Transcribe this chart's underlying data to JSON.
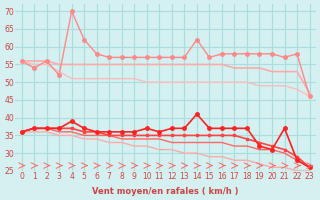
{
  "x": [
    0,
    1,
    2,
    3,
    4,
    5,
    6,
    7,
    8,
    9,
    10,
    11,
    12,
    13,
    14,
    15,
    16,
    17,
    18,
    19,
    20,
    21,
    22,
    23
  ],
  "line1": [
    56,
    54,
    56,
    52,
    70,
    62,
    58,
    57,
    57,
    57,
    57,
    57,
    57,
    57,
    62,
    57,
    58,
    58,
    58,
    58,
    58,
    57,
    58,
    46
  ],
  "line2": [
    56,
    56,
    56,
    55,
    55,
    55,
    55,
    55,
    55,
    55,
    55,
    55,
    55,
    55,
    55,
    55,
    55,
    54,
    54,
    54,
    53,
    53,
    53,
    47
  ],
  "line3": [
    56,
    55,
    55,
    53,
    51,
    51,
    51,
    51,
    51,
    51,
    50,
    50,
    50,
    50,
    50,
    50,
    50,
    50,
    50,
    49,
    49,
    49,
    48,
    46
  ],
  "line4": [
    36,
    37,
    37,
    37,
    39,
    37,
    36,
    36,
    36,
    36,
    37,
    36,
    37,
    37,
    41,
    37,
    37,
    37,
    37,
    32,
    31,
    37,
    28,
    26
  ],
  "line5": [
    36,
    37,
    37,
    37,
    37,
    36,
    36,
    35,
    35,
    35,
    35,
    35,
    35,
    35,
    35,
    35,
    35,
    35,
    34,
    33,
    32,
    31,
    29,
    26
  ],
  "line6": [
    36,
    37,
    37,
    36,
    36,
    35,
    35,
    35,
    34,
    34,
    34,
    34,
    33,
    33,
    33,
    33,
    33,
    32,
    32,
    31,
    31,
    30,
    28,
    26
  ],
  "line7": [
    36,
    36,
    36,
    35,
    35,
    34,
    34,
    33,
    33,
    32,
    32,
    31,
    31,
    30,
    30,
    29,
    29,
    28,
    28,
    27,
    26,
    26,
    25,
    25
  ],
  "bg_color": "#d4f0f0",
  "grid_color": "#aadddd",
  "line1_color": "#ff8888",
  "line2_color": "#ffaaaa",
  "line3_color": "#ffbbbb",
  "line4_color": "#ff2222",
  "line5_color": "#ff4444",
  "line6_color": "#ff6666",
  "line7_color": "#ffaaaa",
  "xlabel": "Vent moyen/en rafales ( km/h )",
  "ylim": [
    25,
    72
  ],
  "yticks": [
    25,
    30,
    35,
    40,
    45,
    50,
    55,
    60,
    65,
    70
  ],
  "xticks": [
    0,
    1,
    2,
    3,
    4,
    5,
    6,
    7,
    8,
    9,
    10,
    11,
    12,
    13,
    14,
    15,
    16,
    17,
    18,
    19,
    20,
    21,
    22,
    23
  ]
}
